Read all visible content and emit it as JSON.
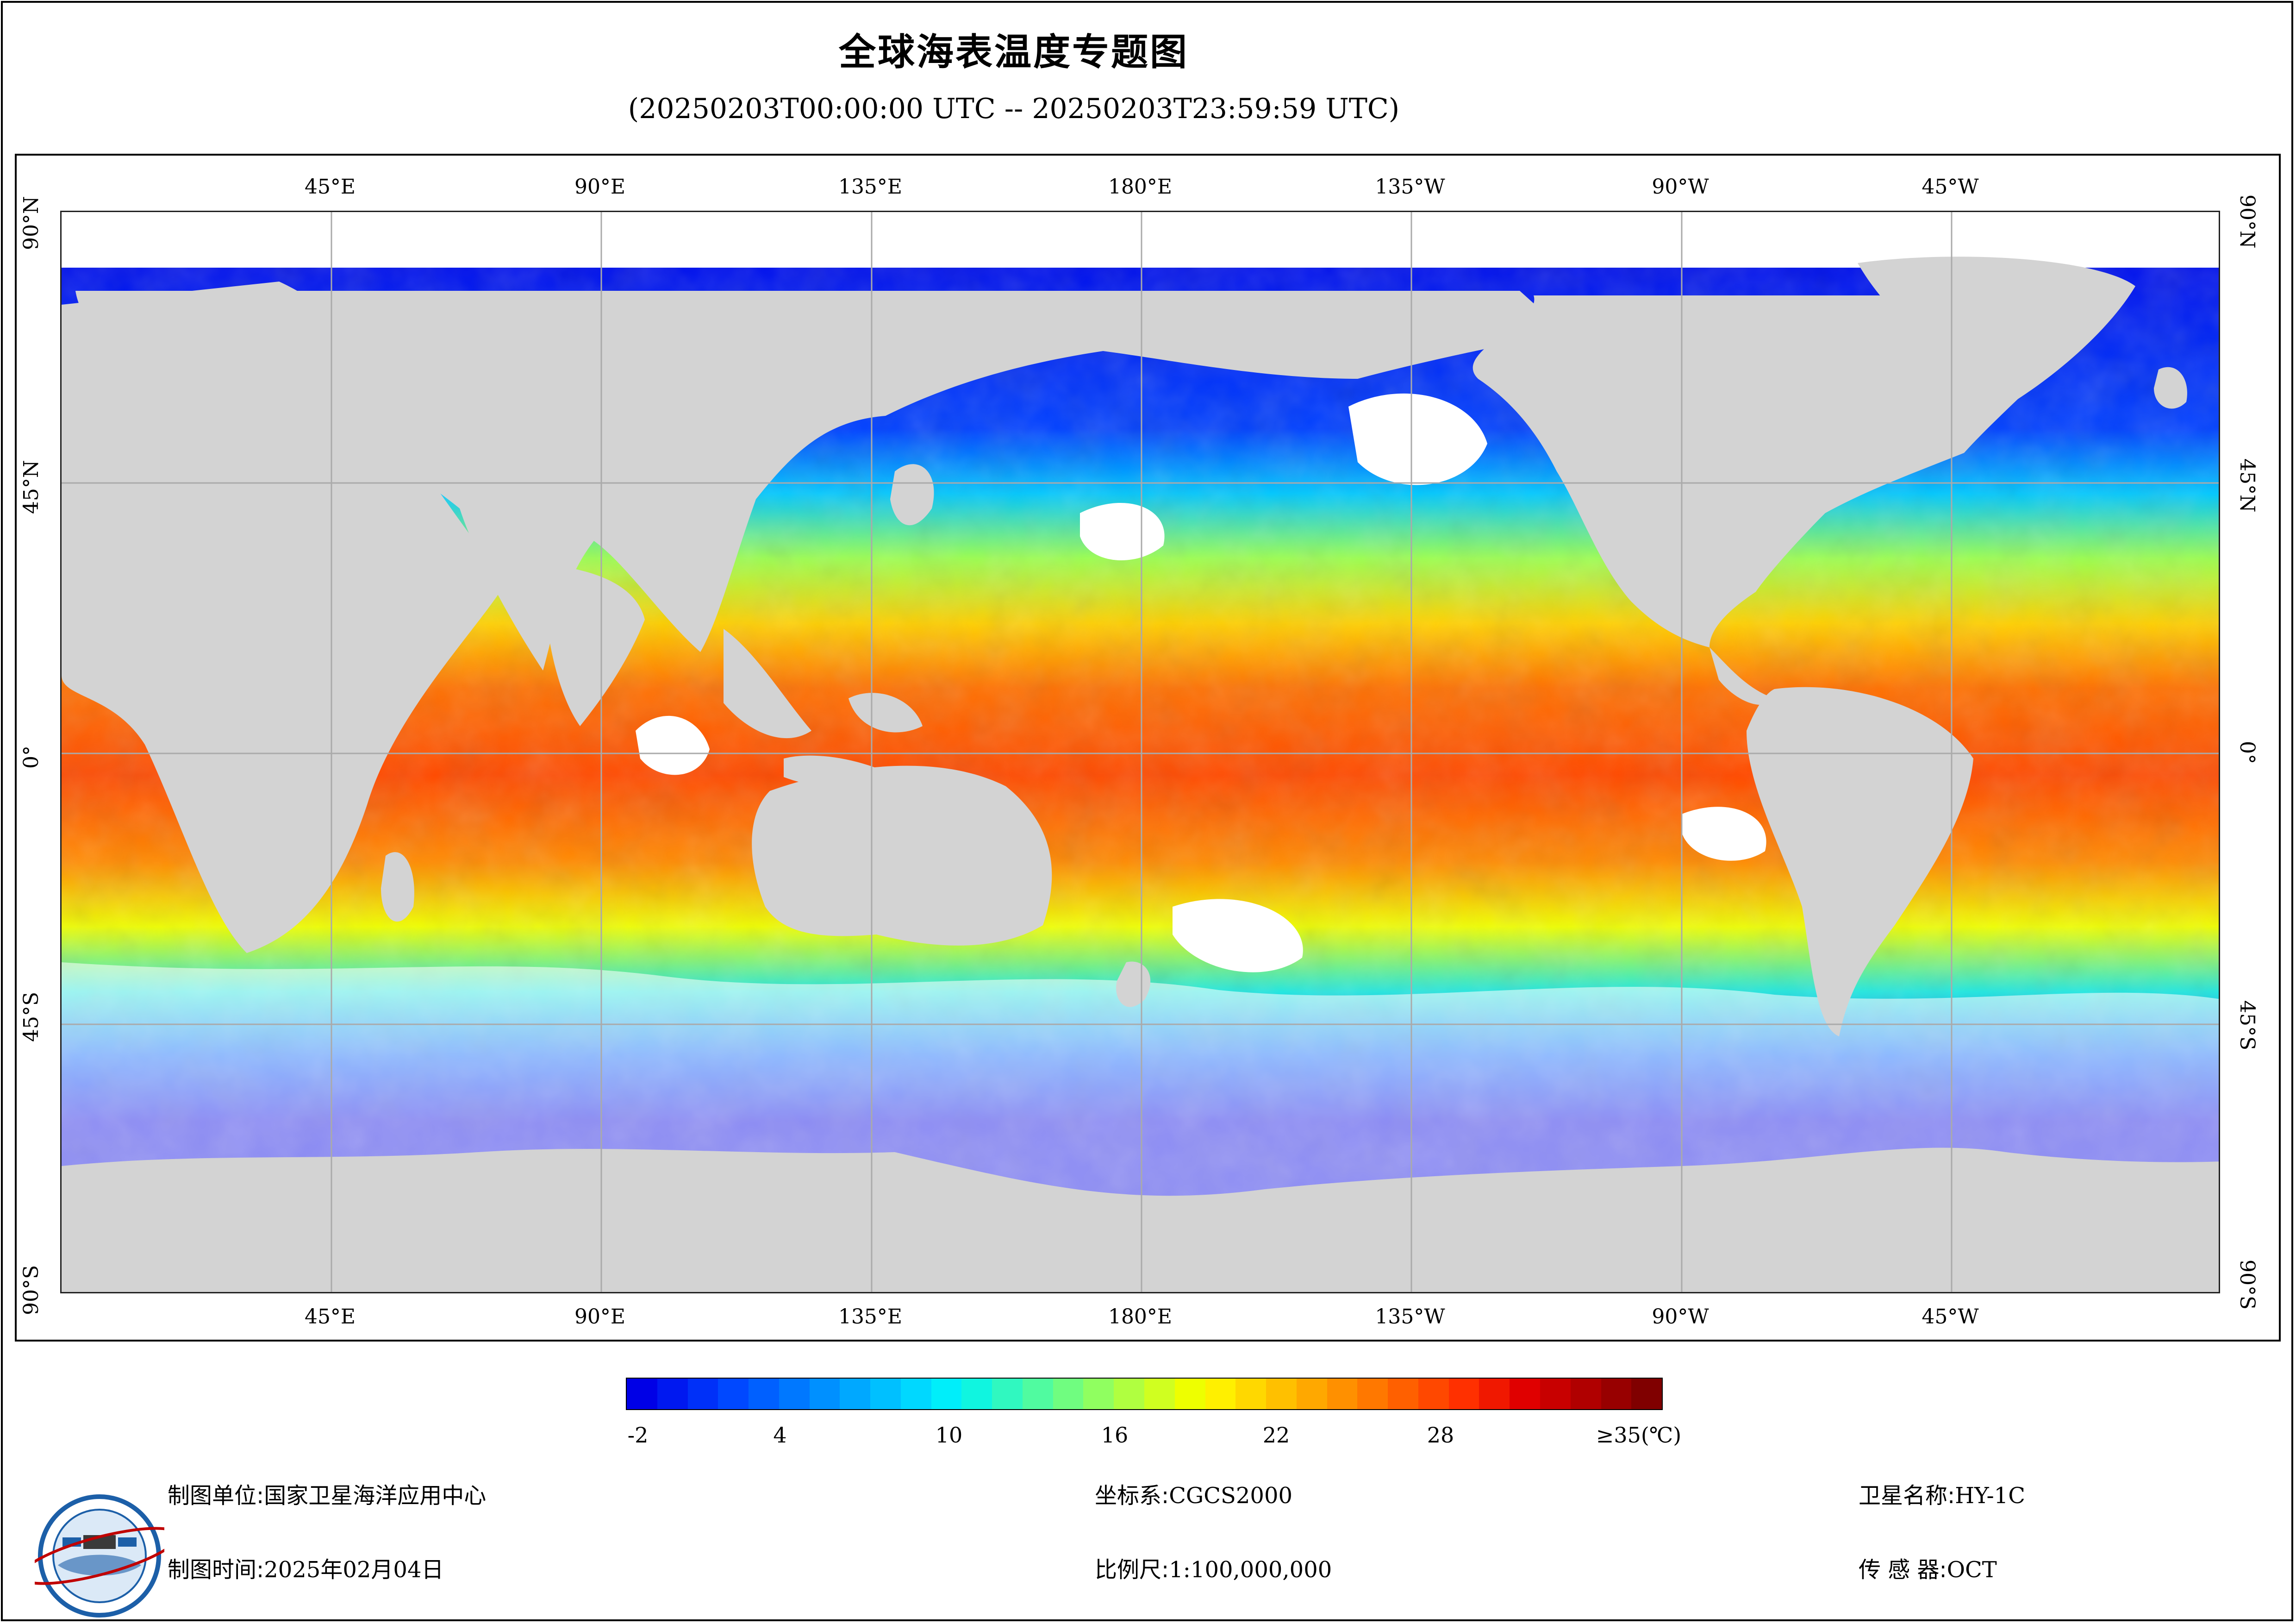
{
  "header": {
    "title": "全球海表温度专题图",
    "subtitle": "(20250203T00:00:00 UTC -- 20250203T23:59:59 UTC)"
  },
  "map": {
    "projection": "equirectangular",
    "lon_labels_top": [
      "45°E",
      "90°E",
      "135°E",
      "180°E",
      "135°W",
      "90°W",
      "45°W"
    ],
    "lon_labels_bottom": [
      "45°E",
      "90°E",
      "135°E",
      "180°E",
      "135°W",
      "90°W",
      "45°W"
    ],
    "lat_labels_left": [
      "90°N",
      "45°N",
      "0°",
      "45°S",
      "90°S"
    ],
    "lat_labels_right": [
      "90°N",
      "45°N",
      "0°",
      "45°S",
      "90°S"
    ],
    "land_color": "#d3d3d3",
    "nodata_color": "#ffffff",
    "grid_color": "#aaaaaa"
  },
  "legend": {
    "labels": [
      "-2",
      "4",
      "10",
      "16",
      "22",
      "28",
      "≥35(℃)"
    ],
    "min_arrow_color": "#0000e6",
    "max_arrow_color": "#7a0000",
    "colors": [
      "#0000e6",
      "#0018f0",
      "#0030f8",
      "#0048ff",
      "#0060ff",
      "#0078ff",
      "#0090ff",
      "#00a8ff",
      "#00c0ff",
      "#00d8ff",
      "#00eefa",
      "#10f5e0",
      "#30f8c0",
      "#50fba0",
      "#70fd80",
      "#90ff60",
      "#b0ff40",
      "#d0ff20",
      "#eeff00",
      "#fff000",
      "#ffd800",
      "#ffc000",
      "#ffa800",
      "#ff9000",
      "#ff7800",
      "#ff6000",
      "#ff4800",
      "#ff3000",
      "#f01800",
      "#e00000",
      "#c80000",
      "#b00000",
      "#980000",
      "#800000"
    ]
  },
  "footer": {
    "org_label": "制图单位:",
    "org_value": "国家卫星海洋应用中心",
    "time_label": "制图时间:",
    "time_value": "2025年02月04日",
    "crs_label": "坐标系:",
    "crs_value": "CGCS2000",
    "scale_label": "比例尺:",
    "scale_value": "1:100,000,000",
    "sat_label": "卫星名称:",
    "sat_value": "HY-1C",
    "sensor_label": "传 感 器:",
    "sensor_value": "OCT"
  }
}
